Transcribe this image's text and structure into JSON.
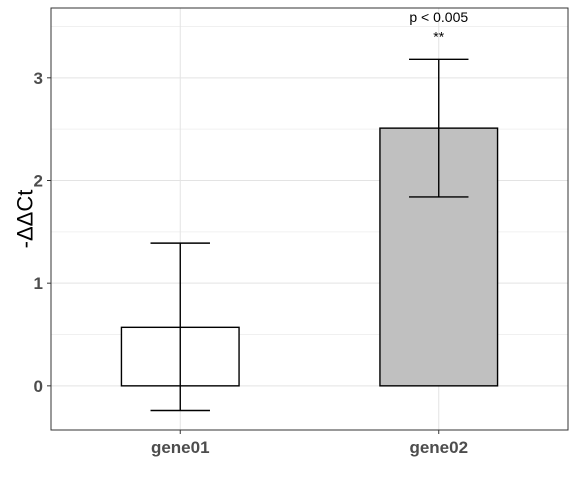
{
  "chart_data": {
    "type": "bar",
    "ylabel": "-ΔΔCt",
    "xlabel": "",
    "categories": [
      "gene01",
      "gene02"
    ],
    "values": [
      0.57,
      2.51
    ],
    "error_upper": [
      1.39,
      3.18
    ],
    "error_lower": [
      -0.24,
      1.84
    ],
    "bar_colors": [
      "#ffffff",
      "#c0c0c0"
    ],
    "ylim": [
      -0.43,
      3.68
    ],
    "yticks": [
      "0",
      "1",
      "2",
      "3"
    ],
    "grid": true,
    "annotations": [
      {
        "category": "gene02",
        "text": "p < 0.005",
        "y": 3.59
      },
      {
        "category": "gene02",
        "text": "**",
        "y": 3.4
      }
    ]
  }
}
